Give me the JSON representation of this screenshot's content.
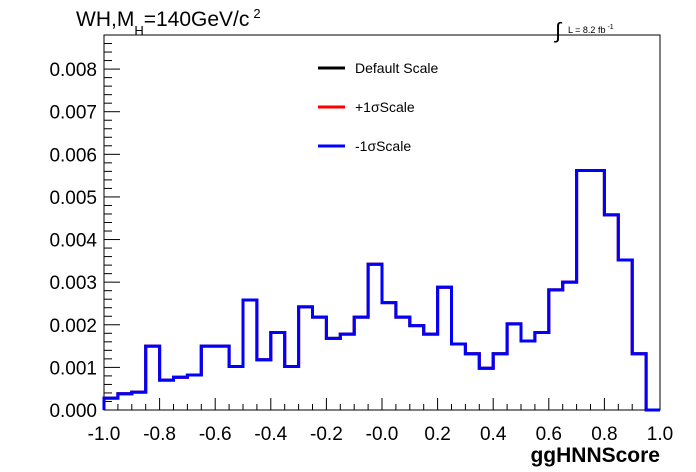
{
  "chart_data": {
    "type": "line",
    "style": "step-histogram",
    "title": {
      "prefix": "WH,M",
      "subscript": "H",
      "suffix": "=140GeV/c",
      "superscript": "2"
    },
    "annotation": {
      "integral_symbol": "∫",
      "text": "L = 8.2 fb",
      "superscript": "-1"
    },
    "xlabel": "ggHNNScore",
    "xlim": [
      -1.0,
      1.0
    ],
    "ylim": [
      0.0,
      0.0088
    ],
    "xticks": [
      "-1.0",
      "-0.8",
      "-0.6",
      "-0.4",
      "-0.2",
      "-0.0",
      "0.2",
      "0.4",
      "0.6",
      "0.8",
      "1.0"
    ],
    "yticks": [
      "0.000",
      "0.001",
      "0.002",
      "0.003",
      "0.004",
      "0.005",
      "0.006",
      "0.007",
      "0.008"
    ],
    "bin_edges": [
      -1.0,
      -0.95,
      -0.9,
      -0.85,
      -0.8,
      -0.75,
      -0.7,
      -0.65,
      -0.6,
      -0.55,
      -0.5,
      -0.45,
      -0.4,
      -0.35,
      -0.3,
      -0.25,
      -0.2,
      -0.15,
      -0.1,
      -0.05,
      0.0,
      0.05,
      0.1,
      0.15,
      0.2,
      0.25,
      0.3,
      0.35,
      0.4,
      0.45,
      0.5,
      0.55,
      0.6,
      0.65,
      0.7,
      0.75,
      0.8,
      0.85,
      0.9,
      0.95,
      1.0
    ],
    "legend_position": "top-center",
    "series": [
      {
        "name": "Default Scale",
        "color": "#000000",
        "values": [
          0.00028,
          0.00038,
          0.00042,
          0.0015,
          0.0007,
          0.00077,
          0.00082,
          0.0015,
          0.0015,
          0.00102,
          0.00258,
          0.00118,
          0.00182,
          0.00102,
          0.00242,
          0.00218,
          0.00168,
          0.00178,
          0.00218,
          0.00342,
          0.00252,
          0.00218,
          0.00198,
          0.00178,
          0.00288,
          0.00155,
          0.00132,
          0.00098,
          0.00132,
          0.00202,
          0.00162,
          0.00182,
          0.00282,
          0.003,
          0.00562,
          0.00562,
          0.00458,
          0.00352,
          0.00132,
          0.0
        ]
      },
      {
        "name": "+1σScale",
        "color": "#ff0000",
        "values": [
          0.00028,
          0.00038,
          0.00042,
          0.0015,
          0.0007,
          0.00077,
          0.00082,
          0.0015,
          0.0015,
          0.00102,
          0.00258,
          0.00118,
          0.00182,
          0.00102,
          0.00242,
          0.00218,
          0.00168,
          0.00178,
          0.00218,
          0.00342,
          0.00252,
          0.00218,
          0.00198,
          0.00178,
          0.00288,
          0.00155,
          0.00132,
          0.00098,
          0.00132,
          0.00202,
          0.00162,
          0.00182,
          0.00282,
          0.003,
          0.00562,
          0.00562,
          0.00458,
          0.00352,
          0.00132,
          0.0
        ]
      },
      {
        "name": "-1σScale",
        "color": "#0000ff",
        "values": [
          0.00028,
          0.00038,
          0.00042,
          0.0015,
          0.0007,
          0.00077,
          0.00082,
          0.0015,
          0.0015,
          0.00102,
          0.00258,
          0.00118,
          0.00182,
          0.00102,
          0.00242,
          0.00218,
          0.00168,
          0.00178,
          0.00218,
          0.00342,
          0.00252,
          0.00218,
          0.00198,
          0.00178,
          0.00288,
          0.00155,
          0.00132,
          0.00098,
          0.00132,
          0.00202,
          0.00162,
          0.00182,
          0.00282,
          0.003,
          0.00562,
          0.00562,
          0.00458,
          0.00352,
          0.00132,
          0.0
        ]
      }
    ]
  }
}
